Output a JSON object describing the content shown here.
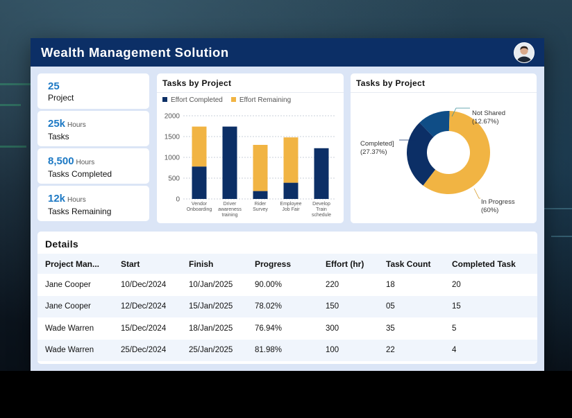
{
  "header": {
    "title": "Wealth Management Solution"
  },
  "stats": [
    {
      "value": "25",
      "unit": "",
      "label": "Project"
    },
    {
      "value": "25k",
      "unit": "Hours",
      "label": "Tasks"
    },
    {
      "value": "8,500",
      "unit": "Hours",
      "label": "Tasks Completed"
    },
    {
      "value": "12k",
      "unit": "Hours",
      "label": "Tasks Remaining"
    }
  ],
  "bar_panel": {
    "title": "Tasks by Project",
    "legend": [
      "Effort Completed",
      "Effort Remaining"
    ]
  },
  "donut_panel": {
    "title": "Tasks by Project"
  },
  "colors": {
    "completed": "#0c2f66",
    "remaining": "#f1b443",
    "not_shared": "#0f4d86",
    "header_bg": "#0c2f66",
    "accent": "#1d79c4"
  },
  "chart_data": [
    {
      "type": "bar",
      "stacked": true,
      "title": "Tasks by Project",
      "categories": [
        [
          "Vendor",
          "Onboarding"
        ],
        [
          "Driver",
          "awareness",
          "training"
        ],
        [
          "Rider",
          "Survey"
        ],
        [
          "Employee",
          "Job Fair"
        ],
        [
          "Develop",
          "Train",
          "schedule"
        ]
      ],
      "series": [
        {
          "name": "Effort Completed",
          "values": [
            780,
            1740,
            190,
            390,
            1220
          ]
        },
        {
          "name": "Effort Remaining",
          "values": [
            960,
            0,
            1110,
            1090,
            0
          ]
        }
      ],
      "yticks": [
        "2000",
        "1500",
        "1000",
        "500",
        "0"
      ],
      "ylim": [
        0,
        2000
      ],
      "grid": true,
      "legend": "top-left"
    },
    {
      "type": "pie",
      "donut": true,
      "title": "Tasks by Project",
      "slices": [
        {
          "name": "Not Shared",
          "label": "(12.67%)",
          "value": 12.67
        },
        {
          "name": "In Progress",
          "label": "(60%)",
          "value": 60
        },
        {
          "name": "Completed]",
          "label": "(27.37%)",
          "value": 27.37
        }
      ]
    }
  ],
  "details": {
    "title": "Details",
    "columns": [
      "Project Man...",
      "Start",
      "Finish",
      "Progress",
      "Effort (hr)",
      "Task Count",
      "Completed Task"
    ],
    "rows": [
      [
        "Jane Cooper",
        "10/Dec/2024",
        "10/Jan/2025",
        "90.00%",
        "220",
        "18",
        "20"
      ],
      [
        "Jane Cooper",
        "12/Dec/2024",
        "15/Jan/2025",
        "78.02%",
        "150",
        "05",
        "15"
      ],
      [
        "Wade Warren",
        "15/Dec/2024",
        "18/Jan/2025",
        "76.94%",
        "300",
        "35",
        "5"
      ],
      [
        "Wade Warren",
        "25/Dec/2024",
        "25/Jan/2025",
        "81.98%",
        "100",
        "22",
        "4"
      ]
    ]
  }
}
